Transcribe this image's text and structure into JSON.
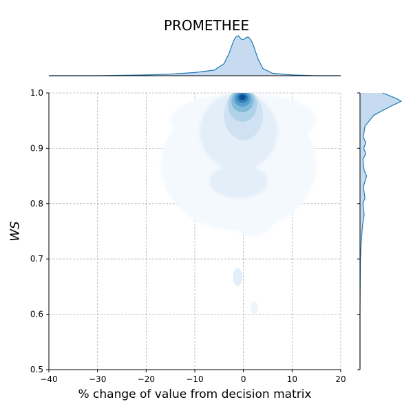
{
  "chart_data": {
    "type": "joint-kde",
    "title": "PROMETHEE",
    "xlabel": "% change of value from decision matrix",
    "ylabel": "WS",
    "xlim": [
      -40,
      20
    ],
    "ylim": [
      0.5,
      1.0
    ],
    "x_ticks": [
      -40,
      -30,
      -20,
      -10,
      0,
      10,
      20
    ],
    "y_ticks": [
      0.5,
      0.6,
      0.7,
      0.8,
      0.9,
      1.0
    ],
    "x_tick_labels": [
      "−40",
      "−30",
      "−20",
      "−10",
      "0",
      "10",
      "20"
    ],
    "y_tick_labels": [
      "0.5",
      "0.6",
      "0.7",
      "0.8",
      "0.9",
      "1.0"
    ],
    "grid": true,
    "colormap": "Blues",
    "kde_levels": [
      {
        "level": 1,
        "color": "#f4f9fe",
        "blobs": [
          {
            "cx": -1,
            "cy": 0.87,
            "rx": 16,
            "ry": 0.12
          },
          {
            "cx": 0,
            "cy": 0.95,
            "rx": 15,
            "ry": 0.05
          },
          {
            "cx": 2,
            "cy": 0.79,
            "rx": 5,
            "ry": 0.05
          }
        ]
      },
      {
        "level": 2,
        "color": "#e3eef9",
        "blobs": [
          {
            "cx": -1,
            "cy": 0.93,
            "rx": 8,
            "ry": 0.07
          },
          {
            "cx": -1,
            "cy": 0.84,
            "rx": 6,
            "ry": 0.03
          }
        ]
      },
      {
        "level": 3,
        "color": "#cfe1f2",
        "blobs": [
          {
            "cx": 0,
            "cy": 0.96,
            "rx": 4,
            "ry": 0.045
          }
        ]
      },
      {
        "level": 4,
        "color": "#b0d2e8",
        "blobs": [
          {
            "cx": -0.2,
            "cy": 0.978,
            "rx": 3,
            "ry": 0.03
          }
        ]
      },
      {
        "level": 5,
        "color": "#83bbdb",
        "blobs": [
          {
            "cx": -0.2,
            "cy": 0.985,
            "rx": 2.3,
            "ry": 0.02
          }
        ]
      },
      {
        "level": 6,
        "color": "#5a9fcc",
        "blobs": [
          {
            "cx": -0.2,
            "cy": 0.989,
            "rx": 1.7,
            "ry": 0.014
          }
        ]
      },
      {
        "level": 7,
        "color": "#2f7ebb",
        "blobs": [
          {
            "cx": -0.2,
            "cy": 0.991,
            "rx": 1.2,
            "ry": 0.009
          }
        ]
      },
      {
        "level": 8,
        "color": "#0b4f94",
        "blobs": [
          {
            "cx": -0.2,
            "cy": 0.992,
            "rx": 0.7,
            "ry": 0.005
          }
        ]
      }
    ],
    "outlier_blobs": [
      {
        "cx": -1.2,
        "cy": 0.667,
        "rx": 1.0,
        "ry": 0.016,
        "color": "#e3eef9"
      },
      {
        "cx": 2.2,
        "cy": 0.612,
        "rx": 0.8,
        "ry": 0.011,
        "color": "#eef5fc"
      }
    ],
    "marginal_x": {
      "x": [
        -40,
        -30,
        -20,
        -15,
        -10,
        -6,
        -4,
        -3,
        -2,
        -1.5,
        -1,
        -0.5,
        0,
        0.5,
        1,
        1.5,
        2,
        3,
        4,
        6,
        10,
        15,
        20
      ],
      "density": [
        0.0,
        0.0,
        0.02,
        0.04,
        0.08,
        0.14,
        0.3,
        0.55,
        0.88,
        0.98,
        1.0,
        0.92,
        0.9,
        0.95,
        0.97,
        0.9,
        0.78,
        0.42,
        0.18,
        0.06,
        0.02,
        0.0,
        0.0
      ]
    },
    "marginal_y": {
      "y": [
        0.5,
        0.6,
        0.66,
        0.7,
        0.73,
        0.76,
        0.78,
        0.8,
        0.81,
        0.83,
        0.85,
        0.86,
        0.88,
        0.89,
        0.9,
        0.91,
        0.92,
        0.94,
        0.96,
        0.975,
        0.985,
        0.99,
        1.0
      ],
      "density": [
        0.0,
        0.0,
        0.005,
        0.01,
        0.03,
        0.06,
        0.1,
        0.07,
        0.12,
        0.08,
        0.16,
        0.1,
        0.07,
        0.14,
        0.09,
        0.14,
        0.08,
        0.12,
        0.34,
        0.72,
        1.0,
        0.88,
        0.55
      ]
    },
    "marginal_color": "#1f77b4",
    "marginal_fill": "#c6dbef"
  }
}
